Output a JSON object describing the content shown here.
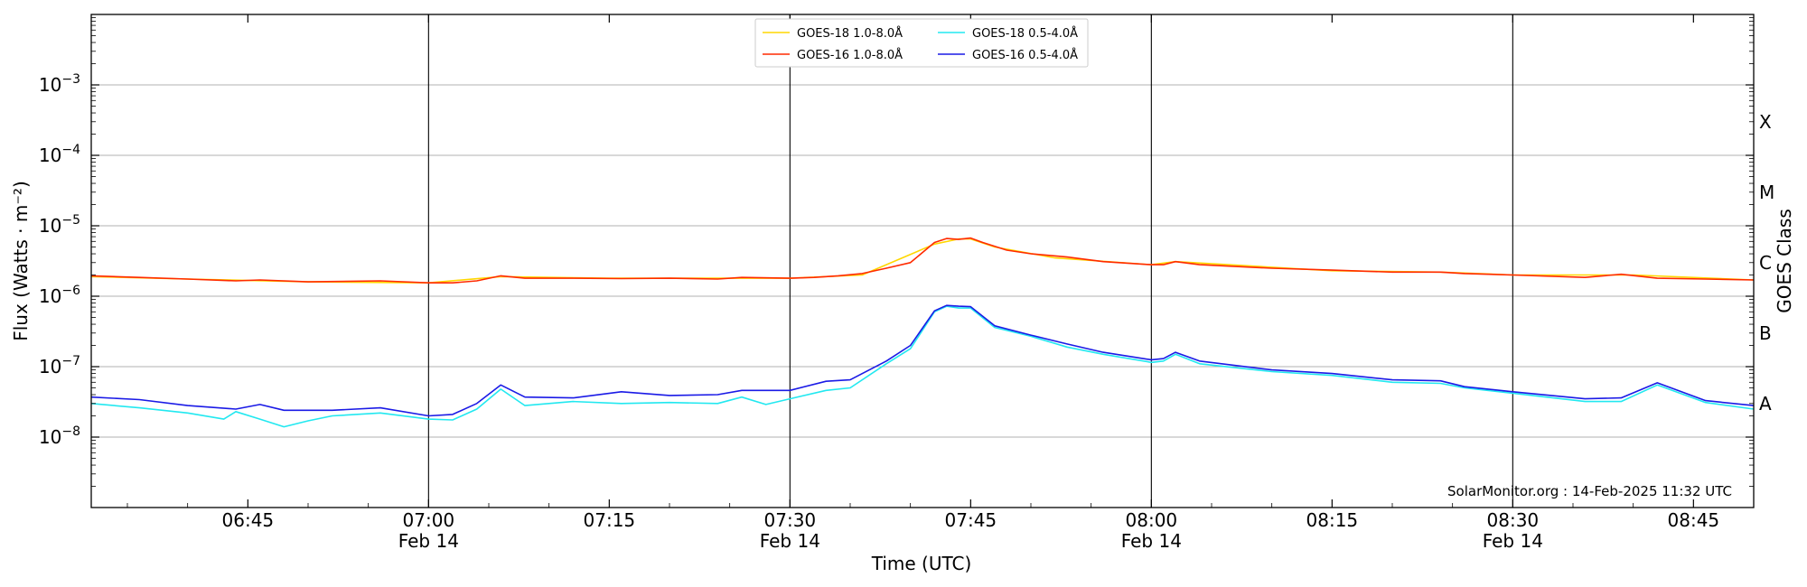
{
  "chart_data": {
    "type": "line",
    "xlabel": "Time (UTC)",
    "ylabel": "Flux (Watts · m⁻²)",
    "y2label": "GOES Class",
    "yscale": "log",
    "xlim": [
      "06:32",
      "08:50"
    ],
    "ylim": [
      1e-09,
      0.01
    ],
    "grid": "horizontal at decades",
    "legend_position": "top-center",
    "credit": "SolarMonitor.org : 14-Feb-2025 11:32 UTC",
    "x_ticks": [
      {
        "time": "06:45",
        "label": "06:45",
        "date": ""
      },
      {
        "time": "07:00",
        "label": "07:00",
        "date": "Feb 14"
      },
      {
        "time": "07:15",
        "label": "07:15",
        "date": ""
      },
      {
        "time": "07:30",
        "label": "07:30",
        "date": "Feb 14"
      },
      {
        "time": "07:45",
        "label": "07:45",
        "date": ""
      },
      {
        "time": "08:00",
        "label": "08:00",
        "date": "Feb 14"
      },
      {
        "time": "08:15",
        "label": "08:15",
        "date": ""
      },
      {
        "time": "08:30",
        "label": "08:30",
        "date": "Feb 14"
      },
      {
        "time": "08:45",
        "label": "08:45",
        "date": ""
      }
    ],
    "vlines": [
      "07:00",
      "07:30",
      "08:00",
      "08:30"
    ],
    "y_ticks": [
      {
        "value": 1e-08,
        "base": "10",
        "exp": "−8"
      },
      {
        "value": 1e-07,
        "base": "10",
        "exp": "−7"
      },
      {
        "value": 1e-06,
        "base": "10",
        "exp": "−6"
      },
      {
        "value": 1e-05,
        "base": "10",
        "exp": "−5"
      },
      {
        "value": 0.0001,
        "base": "10",
        "exp": "−4"
      },
      {
        "value": 0.001,
        "base": "10",
        "exp": "−3"
      }
    ],
    "goes_classes": [
      {
        "label": "X",
        "value": 0.0003
      },
      {
        "label": "M",
        "value": 3e-05
      },
      {
        "label": "C",
        "value": 3e-06
      },
      {
        "label": "B",
        "value": 3e-07
      },
      {
        "label": "A",
        "value": 3e-08
      }
    ],
    "series": [
      {
        "name": "GOES-18 1.0-8.0Å",
        "color": "#ffd700",
        "x": [
          "06:32",
          "06:40",
          "06:50",
          "07:00",
          "07:06",
          "07:15",
          "07:30",
          "07:36",
          "07:42",
          "07:44",
          "07:45",
          "07:47",
          "07:52",
          "08:00",
          "08:02",
          "08:15",
          "08:24",
          "08:30",
          "08:40",
          "08:50"
        ],
        "values": [
          1.9e-06,
          1.75e-06,
          1.6e-06,
          1.55e-06,
          1.9e-06,
          1.8e-06,
          1.8e-06,
          2e-06,
          5.5e-06,
          6.5e-06,
          6.5e-06,
          5e-06,
          3.5e-06,
          2.8e-06,
          3.1e-06,
          2.3e-06,
          2.2e-06,
          2e-06,
          2e-06,
          1.7e-06
        ]
      },
      {
        "name": "GOES-16 1.0-8.0Å",
        "color": "#ff2a00",
        "x": [
          "06:32",
          "06:36",
          "06:40",
          "06:44",
          "06:46",
          "06:50",
          "06:56",
          "07:00",
          "07:02",
          "07:04",
          "07:06",
          "07:08",
          "07:12",
          "07:16",
          "07:20",
          "07:24",
          "07:26",
          "07:30",
          "07:32",
          "07:34",
          "07:36",
          "07:38",
          "07:40",
          "07:42",
          "07:43",
          "07:44",
          "07:45",
          "07:46",
          "07:48",
          "07:50",
          "07:53",
          "07:56",
          "08:00",
          "08:01",
          "08:02",
          "08:04",
          "08:10",
          "08:15",
          "08:20",
          "08:24",
          "08:26",
          "08:30",
          "08:36",
          "08:39",
          "08:42",
          "08:46",
          "08:50"
        ],
        "values": [
          1.95e-06,
          1.85e-06,
          1.75e-06,
          1.65e-06,
          1.7e-06,
          1.6e-06,
          1.65e-06,
          1.55e-06,
          1.55e-06,
          1.65e-06,
          1.95e-06,
          1.8e-06,
          1.8e-06,
          1.78e-06,
          1.8e-06,
          1.75e-06,
          1.85e-06,
          1.8e-06,
          1.85e-06,
          1.95e-06,
          2.1e-06,
          2.5e-06,
          3e-06,
          5.8e-06,
          6.6e-06,
          6.4e-06,
          6.7e-06,
          5.8e-06,
          4.5e-06,
          4e-06,
          3.6e-06,
          3.1e-06,
          2.8e-06,
          2.8e-06,
          3.1e-06,
          2.8e-06,
          2.5e-06,
          2.35e-06,
          2.2e-06,
          2.2e-06,
          2.1e-06,
          2e-06,
          1.85e-06,
          2.05e-06,
          1.8e-06,
          1.75e-06,
          1.7e-06
        ]
      },
      {
        "name": "GOES-18 0.5-4.0Å",
        "color": "#22e8f0",
        "x": [
          "06:32",
          "06:36",
          "06:40",
          "06:43",
          "06:44",
          "06:46",
          "06:48",
          "06:50",
          "06:52",
          "06:56",
          "07:00",
          "07:02",
          "07:04",
          "07:06",
          "07:08",
          "07:12",
          "07:16",
          "07:20",
          "07:24",
          "07:26",
          "07:28",
          "07:30",
          "07:33",
          "07:35",
          "07:38",
          "07:40",
          "07:42",
          "07:43",
          "07:44",
          "07:45",
          "07:47",
          "07:50",
          "07:53",
          "07:56",
          "08:00",
          "08:01",
          "08:02",
          "08:04",
          "08:10",
          "08:15",
          "08:20",
          "08:24",
          "08:26",
          "08:30",
          "08:36",
          "08:39",
          "08:42",
          "08:46",
          "08:50"
        ],
        "values": [
          3e-08,
          2.6e-08,
          2.2e-08,
          1.8e-08,
          2.3e-08,
          1.8e-08,
          1.4e-08,
          1.7e-08,
          2e-08,
          2.2e-08,
          1.8e-08,
          1.75e-08,
          2.5e-08,
          4.8e-08,
          2.8e-08,
          3.2e-08,
          3e-08,
          3.1e-08,
          3e-08,
          3.7e-08,
          2.9e-08,
          3.5e-08,
          4.6e-08,
          5e-08,
          1.1e-07,
          1.8e-07,
          6e-07,
          7.2e-07,
          6.8e-07,
          6.8e-07,
          3.6e-07,
          2.7e-07,
          1.9e-07,
          1.5e-07,
          1.15e-07,
          1.2e-07,
          1.5e-07,
          1.1e-07,
          8.5e-08,
          7.5e-08,
          6e-08,
          5.8e-08,
          5e-08,
          4.2e-08,
          3.2e-08,
          3.2e-08,
          5.5e-08,
          3.1e-08,
          2.5e-08
        ]
      },
      {
        "name": "GOES-16 0.5-4.0Å",
        "color": "#1a1ae6",
        "x": [
          "06:32",
          "06:36",
          "06:40",
          "06:44",
          "06:46",
          "06:48",
          "06:52",
          "06:56",
          "07:00",
          "07:02",
          "07:04",
          "07:06",
          "07:08",
          "07:12",
          "07:16",
          "07:20",
          "07:24",
          "07:26",
          "07:30",
          "07:33",
          "07:35",
          "07:38",
          "07:40",
          "07:42",
          "07:43",
          "07:44",
          "07:45",
          "07:47",
          "07:50",
          "07:53",
          "07:56",
          "08:00",
          "08:01",
          "08:02",
          "08:04",
          "08:10",
          "08:15",
          "08:20",
          "08:24",
          "08:26",
          "08:30",
          "08:36",
          "08:39",
          "08:42",
          "08:46",
          "08:50"
        ],
        "values": [
          3.7e-08,
          3.4e-08,
          2.8e-08,
          2.5e-08,
          2.9e-08,
          2.4e-08,
          2.4e-08,
          2.6e-08,
          2e-08,
          2.1e-08,
          3e-08,
          5.5e-08,
          3.7e-08,
          3.6e-08,
          4.4e-08,
          3.9e-08,
          4e-08,
          4.6e-08,
          4.6e-08,
          6.2e-08,
          6.5e-08,
          1.2e-07,
          2e-07,
          6.2e-07,
          7.4e-07,
          7.2e-07,
          7.1e-07,
          3.8e-07,
          2.8e-07,
          2.1e-07,
          1.6e-07,
          1.25e-07,
          1.3e-07,
          1.6e-07,
          1.2e-07,
          9e-08,
          8e-08,
          6.5e-08,
          6.3e-08,
          5.2e-08,
          4.4e-08,
          3.5e-08,
          3.6e-08,
          5.9e-08,
          3.3e-08,
          2.8e-08
        ]
      }
    ]
  }
}
